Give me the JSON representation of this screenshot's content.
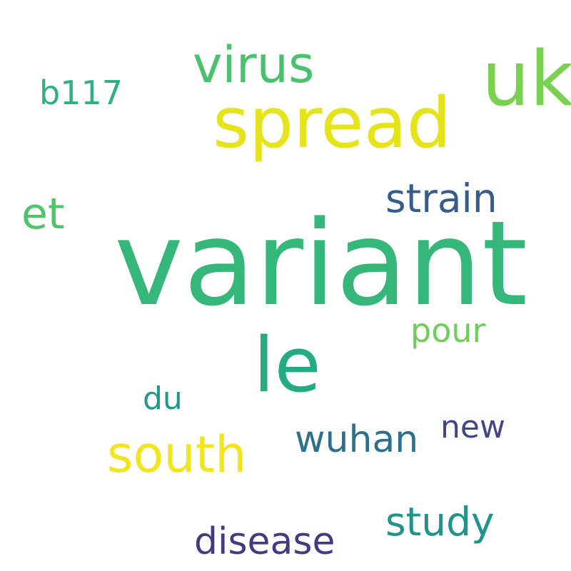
{
  "words": {
    "variant": {
      "text": "variant",
      "color": "#35b779"
    },
    "uk": {
      "text": "uk",
      "color": "#7ad151"
    },
    "spread": {
      "text": "spread",
      "color": "#e5e419"
    },
    "le": {
      "text": "le",
      "color": "#25ab82"
    },
    "virus": {
      "text": "virus",
      "color": "#4ac16d"
    },
    "south": {
      "text": "south",
      "color": "#f1e51d"
    },
    "strain": {
      "text": "strain",
      "color": "#365c8d"
    },
    "study": {
      "text": "study",
      "color": "#1f948c"
    },
    "disease": {
      "text": "disease",
      "color": "#443a83"
    },
    "wuhan": {
      "text": "wuhan",
      "color": "#2d708e"
    },
    "et": {
      "text": "et",
      "color": "#50c46a"
    },
    "pour": {
      "text": "pour",
      "color": "#6ece58"
    },
    "b117": {
      "text": "b117",
      "color": "#2db27d"
    },
    "du": {
      "text": "du",
      "color": "#1f9a8a"
    },
    "new": {
      "text": "new",
      "color": "#404688"
    }
  }
}
